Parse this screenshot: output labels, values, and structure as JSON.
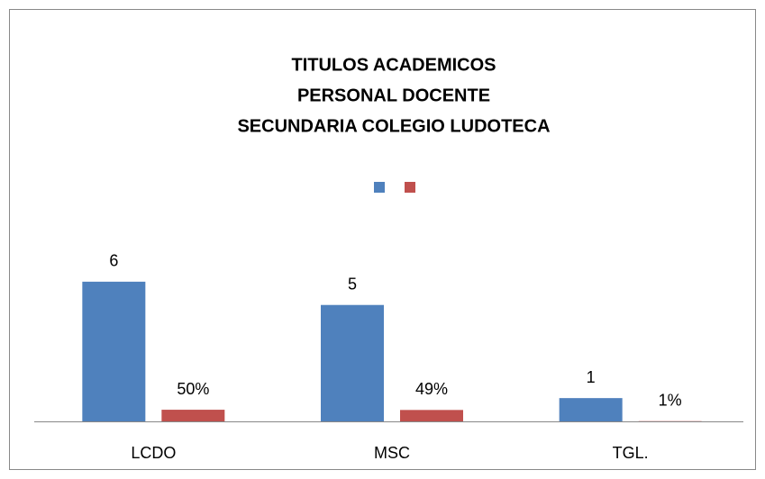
{
  "chart_data": {
    "type": "bar",
    "title": [
      "TITULOS ACADEMICOS",
      "PERSONAL DOCENTE",
      "SECUNDARIA COLEGIO LUDOTECA"
    ],
    "categories": [
      "LCDO",
      "MSC",
      "TGL."
    ],
    "series": [
      {
        "color": "#4f81bd",
        "values": [
          6,
          5,
          1
        ]
      },
      {
        "color": "#c0504d",
        "values": [
          0.5,
          0.49,
          0.01
        ],
        "value_labels": [
          "50%",
          "49%",
          "1%"
        ]
      }
    ],
    "ylim": [
      0,
      7
    ],
    "legend": "top"
  }
}
